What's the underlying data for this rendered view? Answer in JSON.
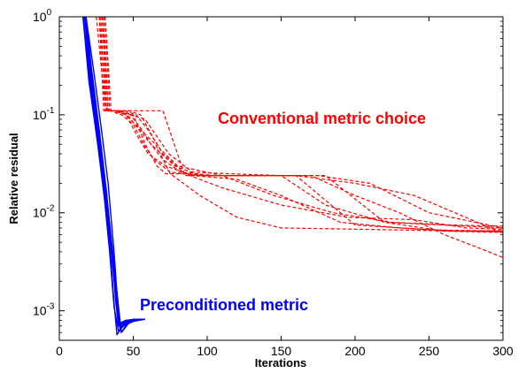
{
  "chart_data": {
    "type": "line",
    "xlabel": "Iterations",
    "ylabel": "Relative residual",
    "xlim": [
      0,
      300
    ],
    "ylim": [
      0.0005,
      1
    ],
    "yscale": "log",
    "grid": false,
    "xticks": [
      0,
      50,
      100,
      150,
      200,
      250,
      300
    ],
    "yticks": [
      {
        "value": 1,
        "base": "10",
        "exp": "0"
      },
      {
        "value": 0.1,
        "base": "10",
        "exp": "-1"
      },
      {
        "value": 0.01,
        "base": "10",
        "exp": "-2"
      },
      {
        "value": 0.001,
        "base": "10",
        "exp": "-3"
      }
    ],
    "annotations": [
      {
        "text": "Conventional metric choice",
        "x": 94,
        "y": 0.09,
        "color": "#ff0000"
      },
      {
        "text": "Preconditioned metric",
        "x": 48,
        "y": 0.00095,
        "color": "#0000ff"
      }
    ],
    "series_groups": [
      {
        "color": "#ff0000",
        "style": "dashed",
        "series": [
          {
            "x": [
              25,
              31,
              35,
              45,
              55,
              70,
              85,
              110,
              160,
              200,
              250,
              300
            ],
            "y": [
              1.0,
              0.12,
              0.11,
              0.11,
              0.11,
              0.11,
              0.024,
              0.024,
              0.024,
              0.0075,
              0.0067,
              0.0065
            ]
          },
          {
            "x": [
              30,
              33,
              38,
              48,
              56,
              62,
              78,
              95,
              140,
              180,
              220,
              260,
              300
            ],
            "y": [
              1.0,
              0.11,
              0.11,
              0.1,
              0.07,
              0.05,
              0.03,
              0.024,
              0.024,
              0.024,
              0.008,
              0.0065,
              0.0063
            ]
          },
          {
            "x": [
              27,
              32,
              36,
              45,
              53,
              60,
              72,
              90,
              120,
              150,
              190,
              230,
              270,
              300
            ],
            "y": [
              1.0,
              0.11,
              0.11,
              0.1,
              0.06,
              0.04,
              0.03,
              0.024,
              0.022,
              0.015,
              0.008,
              0.007,
              0.0065,
              0.0066
            ]
          },
          {
            "x": [
              28,
              31,
              34,
              42,
              50,
              57,
              64,
              75,
              95,
              130,
              160,
              200,
              240,
              300
            ],
            "y": [
              1.0,
              0.11,
              0.11,
              0.1,
              0.08,
              0.05,
              0.035,
              0.026,
              0.024,
              0.024,
              0.024,
              0.02,
              0.015,
              0.0062
            ]
          },
          {
            "x": [
              29,
              32,
              37,
              47,
              55,
              63,
              70,
              85,
              110,
              150,
              195,
              240,
              275,
              300
            ],
            "y": [
              1.0,
              0.11,
              0.11,
              0.11,
              0.1,
              0.06,
              0.04,
              0.025,
              0.018,
              0.012,
              0.009,
              0.0085,
              0.007,
              0.0068
            ]
          },
          {
            "x": [
              30,
              33,
              38,
              46,
              54,
              62,
              70,
              82,
              105,
              140,
              175,
              210,
              250,
              300
            ],
            "y": [
              1.0,
              0.11,
              0.11,
              0.1,
              0.07,
              0.05,
              0.035,
              0.026,
              0.024,
              0.024,
              0.024,
              0.02,
              0.01,
              0.007
            ]
          },
          {
            "x": [
              31,
              34,
              39,
              48,
              58,
              66,
              74,
              90,
              115,
              150,
              180,
              220,
              260,
              300
            ],
            "y": [
              1.0,
              0.11,
              0.11,
              0.1,
              0.09,
              0.06,
              0.04,
              0.026,
              0.025,
              0.024,
              0.012,
              0.008,
              0.0075,
              0.007
            ]
          },
          {
            "x": [
              27,
              30,
              35,
              44,
              52,
              60,
              68,
              80,
              110,
              145,
              185,
              225,
              265,
              300
            ],
            "y": [
              1.0,
              0.11,
              0.11,
              0.11,
              0.1,
              0.07,
              0.045,
              0.03,
              0.024,
              0.015,
              0.01,
              0.008,
              0.0075,
              0.0073
            ]
          },
          {
            "x": [
              29,
              33,
              38,
              45,
              55,
              65,
              75,
              95,
              120,
              150,
              200,
              250,
              300
            ],
            "y": [
              1.0,
              0.11,
              0.11,
              0.1,
              0.07,
              0.05,
              0.025,
              0.015,
              0.009,
              0.007,
              0.0068,
              0.0066,
              0.0064
            ]
          },
          {
            "x": [
              31,
              35,
              40,
              50,
              58,
              66,
              72,
              85,
              100,
              120,
              140,
              170,
              200,
              230,
              260,
              285,
              300
            ],
            "y": [
              1.0,
              0.11,
              0.11,
              0.1,
              0.05,
              0.03,
              0.025,
              0.025,
              0.024,
              0.024,
              0.024,
              0.024,
              0.015,
              0.01,
              0.006,
              0.0043,
              0.0035
            ]
          }
        ]
      },
      {
        "color": "#0000ff",
        "style": "solid",
        "series": [
          {
            "x": [
              16,
              20,
              25,
              30,
              35,
              38,
              40,
              44,
              50,
              58
            ],
            "y": [
              1.0,
              0.3,
              0.08,
              0.02,
              0.004,
              0.0015,
              0.0007,
              0.00078,
              0.00082,
              0.00082
            ]
          },
          {
            "x": [
              17,
              21,
              26,
              31,
              36,
              39,
              41,
              45,
              52,
              58
            ],
            "y": [
              1.0,
              0.3,
              0.07,
              0.018,
              0.0035,
              0.0012,
              0.00065,
              0.0008,
              0.00082,
              0.00082
            ]
          },
          {
            "x": [
              18,
              22,
              27,
              32,
              37,
              40,
              42,
              46,
              52,
              58
            ],
            "y": [
              1.0,
              0.25,
              0.06,
              0.015,
              0.003,
              0.0011,
              0.0006,
              0.00075,
              0.0008,
              0.00082
            ]
          },
          {
            "x": [
              16,
              21,
              26,
              31,
              35,
              37,
              39,
              43,
              50,
              58
            ],
            "y": [
              1.0,
              0.2,
              0.05,
              0.012,
              0.003,
              0.0012,
              0.00057,
              0.0007,
              0.00078,
              0.00082
            ]
          },
          {
            "x": [
              17,
              22,
              27,
              32,
              36,
              38,
              40,
              44,
              50,
              58
            ],
            "y": [
              1.0,
              0.28,
              0.07,
              0.016,
              0.0035,
              0.0013,
              0.0007,
              0.00076,
              0.0008,
              0.00082
            ]
          },
          {
            "x": [
              18,
              23,
              28,
              33,
              37,
              39,
              41,
              45,
              52,
              58
            ],
            "y": [
              1.0,
              0.3,
              0.08,
              0.02,
              0.004,
              0.0015,
              0.00075,
              0.0008,
              0.00082,
              0.00082
            ]
          },
          {
            "x": [
              16,
              20,
              26,
              31,
              36,
              38,
              41,
              46,
              54,
              58
            ],
            "y": [
              1.0,
              0.22,
              0.05,
              0.013,
              0.0032,
              0.0014,
              0.00068,
              0.00078,
              0.00082,
              0.00082
            ]
          },
          {
            "x": [
              17,
              21,
              26,
              30,
              34,
              37,
              40,
              45,
              50,
              58
            ],
            "y": [
              1.0,
              0.26,
              0.06,
              0.017,
              0.004,
              0.0011,
              0.00062,
              0.00074,
              0.0008,
              0.00082
            ]
          },
          {
            "x": [
              18,
              22,
              27,
              32,
              36,
              39,
              42,
              47,
              53,
              58
            ],
            "y": [
              1.0,
              0.27,
              0.06,
              0.015,
              0.0033,
              0.0013,
              0.0006,
              0.00075,
              0.00081,
              0.00082
            ]
          }
        ]
      }
    ]
  }
}
